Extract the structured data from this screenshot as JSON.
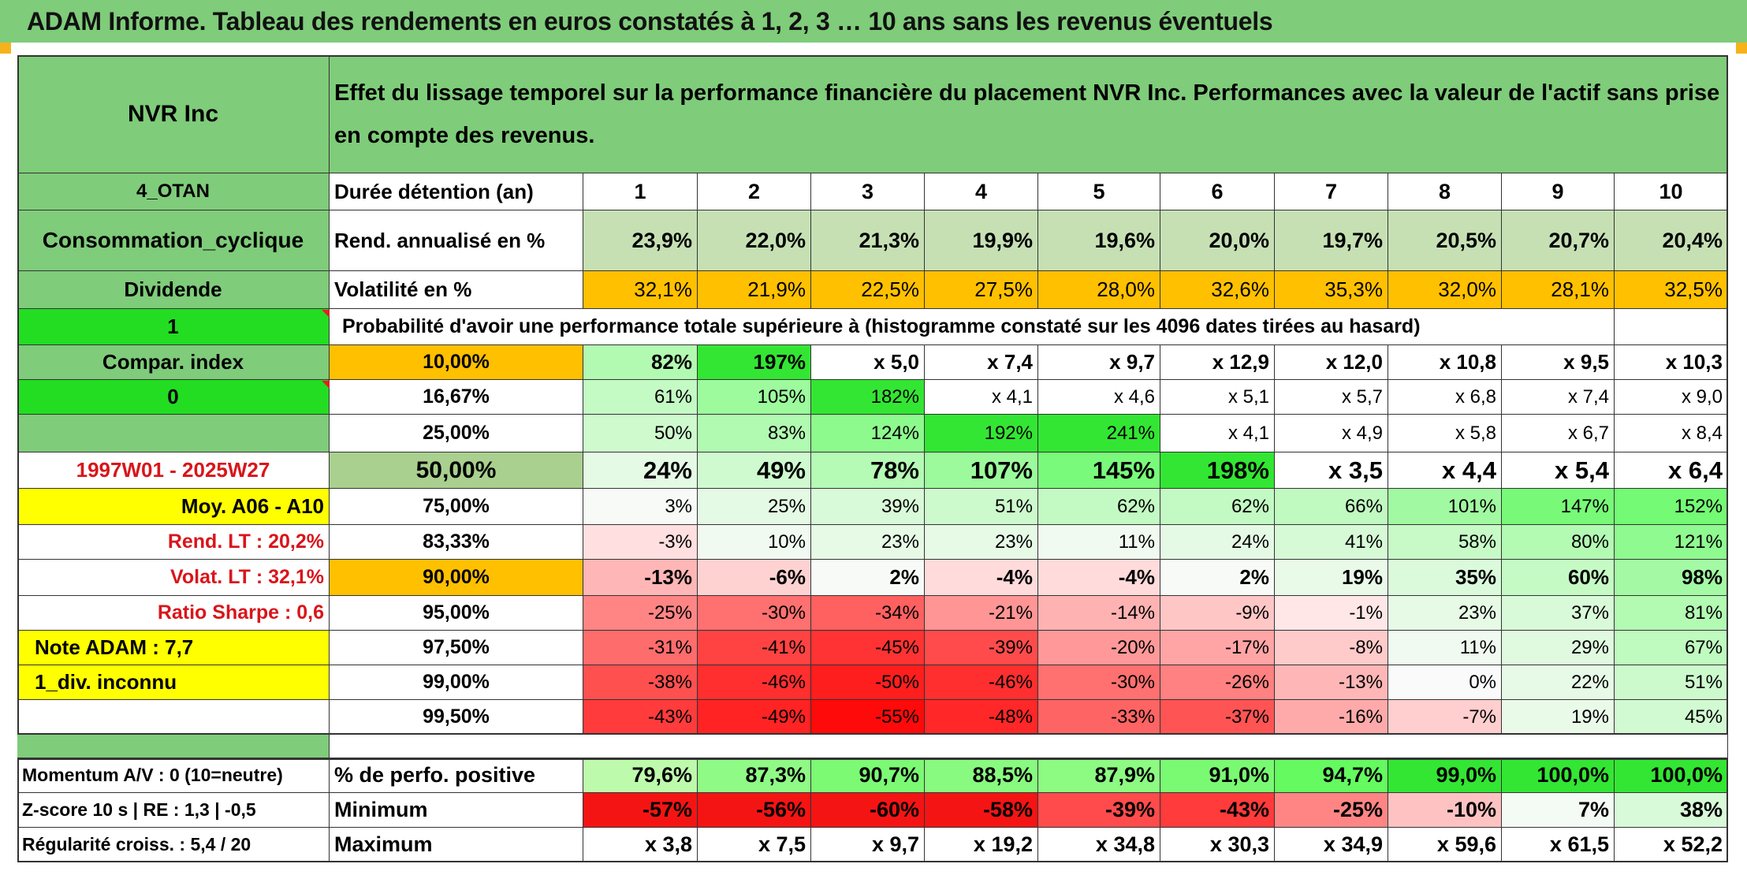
{
  "title": "ADAM Informe. Tableau des rendements en euros constatés à 1, 2, 3 … 10 ans sans les revenus éventuels",
  "colors": {
    "header_green": "#7fcc7a",
    "bright_green": "#22dd22",
    "yellow": "#ffff00",
    "orange": "#ffc000",
    "red_text": "#d9151b"
  },
  "sidebar": {
    "company": "NVR Inc",
    "country": "4_OTAN",
    "sector": "Consommation_cyclique",
    "dividend_label": "Dividende",
    "dividend_value": "1",
    "compar_index_label": "Compar. index",
    "compar_index_value": "0",
    "period": "1997W01 - 2025W27",
    "average": "Moy. A06 - A10",
    "rend_lt": "Rend. LT :   20,2%",
    "volat_lt": "Volat. LT :   32,1%",
    "sharpe": "Ratio Sharpe :   0,6",
    "note": "Note ADAM : 7,7",
    "div_info": "1_div. inconnu",
    "momentum": "Momentum A/V : 0 (10=neutre)",
    "zscore": "Z-score 10 s | RE : 1,3 | -0,5",
    "regularite": "Régularité croiss. : 5,4 / 20"
  },
  "header": {
    "description": "Effet du lissage temporel sur la performance financière du placement NVR Inc. Performances avec la valeur de l'actif sans prise en compte des revenus."
  },
  "labels": {
    "duration": "Durée détention (an)",
    "rend": "Rend. annualisé en %",
    "vol": "Volatilité en %",
    "prob": "Probabilité d'avoir une performance totale supérieure à (histogramme constaté sur les 4096 dates tirées au hasard)",
    "positive": "% de perfo. positive",
    "minimum": "Minimum",
    "maximum": "Maximum"
  },
  "years": [
    "1",
    "2",
    "3",
    "4",
    "5",
    "6",
    "7",
    "8",
    "9",
    "10"
  ],
  "rend": [
    "23,9%",
    "22,0%",
    "21,3%",
    "19,9%",
    "19,6%",
    "20,0%",
    "19,7%",
    "20,5%",
    "20,7%",
    "20,4%"
  ],
  "vol": [
    "32,1%",
    "21,9%",
    "22,5%",
    "27,5%",
    "28,0%",
    "32,6%",
    "35,3%",
    "32,0%",
    "28,1%",
    "32,5%"
  ],
  "percentile_rows": [
    {
      "label": "10,00%",
      "values": [
        "82%",
        "197%",
        "x 5,0",
        "x 7,4",
        "x 9,7",
        "x 12,9",
        "x 12,0",
        "x 10,8",
        "x 9,5",
        "x 10,3"
      ]
    },
    {
      "label": "16,67%",
      "values": [
        "61%",
        "105%",
        "182%",
        "x 4,1",
        "x 4,6",
        "x 5,1",
        "x 5,7",
        "x 6,8",
        "x 7,4",
        "x 9,0"
      ]
    },
    {
      "label": "25,00%",
      "values": [
        "50%",
        "83%",
        "124%",
        "192%",
        "241%",
        "x 4,1",
        "x 4,9",
        "x 5,8",
        "x 6,7",
        "x 8,4"
      ]
    },
    {
      "label": "50,00%",
      "values": [
        "24%",
        "49%",
        "78%",
        "107%",
        "145%",
        "198%",
        "x 3,5",
        "x 4,4",
        "x 5,4",
        "x 6,4"
      ]
    },
    {
      "label": "75,00%",
      "values": [
        "3%",
        "25%",
        "39%",
        "51%",
        "62%",
        "62%",
        "66%",
        "101%",
        "147%",
        "152%"
      ]
    },
    {
      "label": "83,33%",
      "values": [
        "-3%",
        "10%",
        "23%",
        "23%",
        "11%",
        "24%",
        "41%",
        "58%",
        "80%",
        "121%"
      ]
    },
    {
      "label": "90,00%",
      "values": [
        "-13%",
        "-6%",
        "2%",
        "-4%",
        "-4%",
        "2%",
        "19%",
        "35%",
        "60%",
        "98%"
      ]
    },
    {
      "label": "95,00%",
      "values": [
        "-25%",
        "-30%",
        "-34%",
        "-21%",
        "-14%",
        "-9%",
        "-1%",
        "23%",
        "37%",
        "81%"
      ]
    },
    {
      "label": "97,50%",
      "values": [
        "-31%",
        "-41%",
        "-45%",
        "-39%",
        "-20%",
        "-17%",
        "-8%",
        "11%",
        "29%",
        "67%"
      ]
    },
    {
      "label": "99,00%",
      "values": [
        "-38%",
        "-46%",
        "-50%",
        "-46%",
        "-30%",
        "-26%",
        "-13%",
        "0%",
        "22%",
        "51%"
      ]
    },
    {
      "label": "99,50%",
      "values": [
        "-43%",
        "-49%",
        "-55%",
        "-48%",
        "-33%",
        "-37%",
        "-16%",
        "-7%",
        "19%",
        "45%"
      ]
    }
  ],
  "positive": [
    "79,6%",
    "87,3%",
    "90,7%",
    "88,5%",
    "87,9%",
    "91,0%",
    "94,7%",
    "99,0%",
    "100,0%",
    "100,0%"
  ],
  "minimum": [
    "-57%",
    "-56%",
    "-60%",
    "-58%",
    "-39%",
    "-43%",
    "-25%",
    "-10%",
    "7%",
    "38%"
  ],
  "maximum": [
    "x 3,8",
    "x 7,5",
    "x 9,7",
    "x 19,2",
    "x 34,8",
    "x 30,3",
    "x 34,9",
    "x 59,6",
    "x 61,5",
    "x 52,2"
  ]
}
